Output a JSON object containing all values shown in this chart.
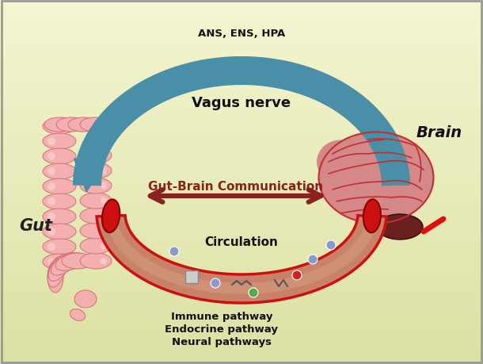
{
  "bg_color_top_left": "#f0f0cc",
  "bg_color_bottom": "#d8d890",
  "title_text": "ANS, ENS, HPA",
  "vagus_text": "Vagus nerve",
  "gut_label": "Gut",
  "brain_label": "Brain",
  "communication_text": "Gut-Brain Communication",
  "circulation_text": "Circulation",
  "pathway_lines": [
    "Immune pathway",
    "Endocrine pathway",
    "Neural pathways"
  ],
  "arrow_color": "#4a8fa8",
  "comm_arrow_color": "#8b2020",
  "gut_color": "#f4b0b0",
  "gut_light": "#fad0d0",
  "gut_dark": "#d07070",
  "brain_color": "#d48888",
  "brain_light": "#e0a0a0",
  "brain_dark": "#c03030",
  "brain_stem": "#6b2020",
  "vessel_red": "#cc1010",
  "vessel_fill": "#c8826a",
  "vessel_highlight": "#d4a080"
}
